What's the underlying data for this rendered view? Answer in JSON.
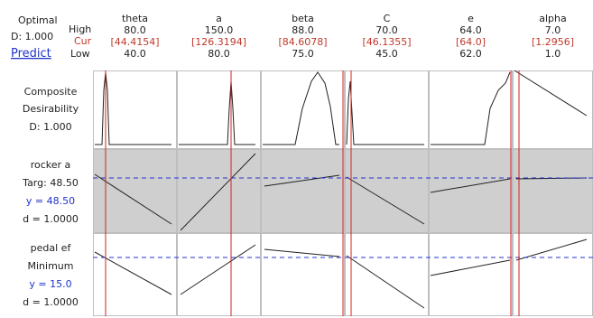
{
  "left_panel": {
    "optimal_label": "Optimal",
    "d_value": "D: 1.000",
    "predict_link": "Predict",
    "high_label": "High",
    "cur_label": "Cur",
    "low_label": "Low"
  },
  "factors": [
    {
      "name": "theta",
      "high": "80.0",
      "cur": "[44.4154]",
      "low": "40.0"
    },
    {
      "name": "a",
      "high": "150.0",
      "cur": "[126.3194]",
      "low": "80.0"
    },
    {
      "name": "beta",
      "high": "88.0",
      "cur": "[84.6078]",
      "low": "75.0"
    },
    {
      "name": "C",
      "high": "70.0",
      "cur": "[46.1355]",
      "low": "45.0"
    },
    {
      "name": "e",
      "high": "64.0",
      "cur": "[64.0]",
      "low": "62.0"
    },
    {
      "name": "alpha",
      "high": "7.0",
      "cur": "[1.2956]",
      "low": "1.0"
    }
  ],
  "rows": [
    {
      "lines": [
        "Composite",
        "Desirability",
        "D: 1.000"
      ]
    },
    {
      "lines": [
        "rocker a",
        "Targ: 48.50",
        "y = 48.50",
        "d = 1.0000"
      ]
    },
    {
      "lines": [
        "pedal ef",
        "Minimum",
        "y = 15.0",
        "d = 1.0000"
      ]
    }
  ],
  "colors": {
    "cur_text": "#c0392b",
    "cur_line": "#d42020",
    "target_dash": "#2233cc",
    "shade": "#cfcfcf",
    "grid": "#bfbfbf"
  }
}
